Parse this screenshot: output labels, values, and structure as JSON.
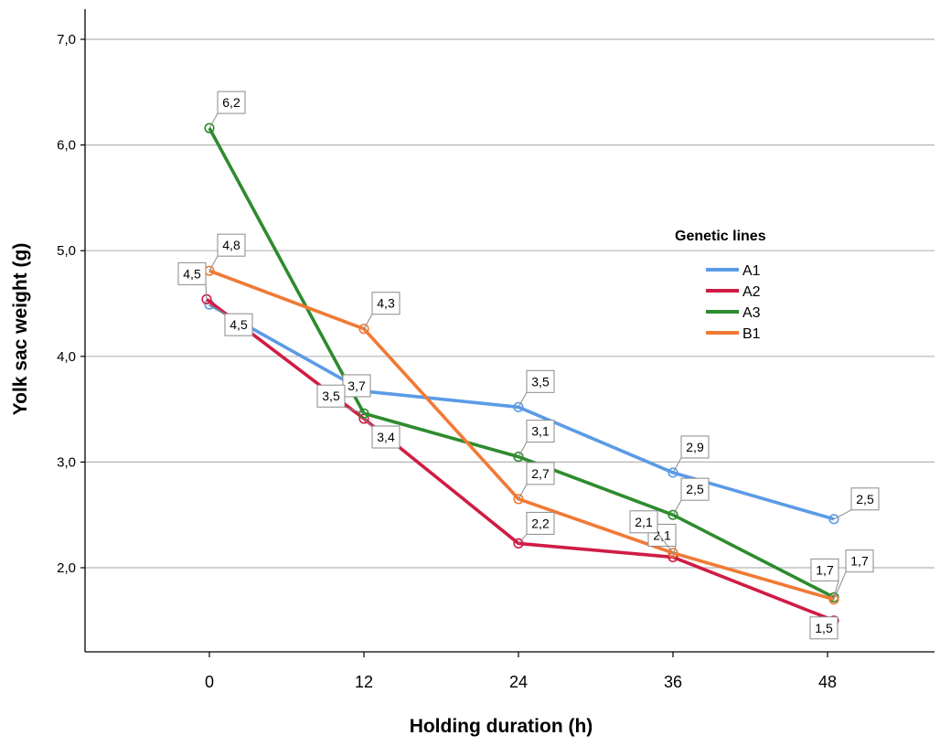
{
  "chart_data": {
    "type": "line",
    "xlabel": "Holding duration (h)",
    "ylabel": "Yolk sac weight (g)",
    "x": [
      0,
      12,
      24,
      36,
      48
    ],
    "xticks": [
      "0",
      "12",
      "24",
      "36",
      "48"
    ],
    "ylim": [
      1.2,
      7.3
    ],
    "yticks": [
      {
        "value": 2.0,
        "label": "2,0"
      },
      {
        "value": 3.0,
        "label": "3,0"
      },
      {
        "value": 4.0,
        "label": "4,0"
      },
      {
        "value": 5.0,
        "label": "5,0"
      },
      {
        "value": 6.0,
        "label": "6,0"
      },
      {
        "value": 7.0,
        "label": "7,0"
      }
    ],
    "grid": "horizontal",
    "legend": {
      "title": "Genetic lines",
      "position": "right"
    },
    "series": [
      {
        "name": "A1",
        "color": "#5b9be6",
        "values": [
          4.49,
          3.67,
          3.52,
          2.9,
          2.46
        ],
        "labels": [
          "4,5",
          "3,7",
          "3,5",
          "2,9",
          "2,5"
        ]
      },
      {
        "name": "A2",
        "color": "#d01c44",
        "values": [
          4.54,
          3.41,
          2.23,
          2.1,
          1.5
        ],
        "labels": [
          "4,5",
          "3,4",
          "2,2",
          "2,1",
          "1,5"
        ]
      },
      {
        "name": "A3",
        "color": "#2e8b2e",
        "values": [
          6.16,
          3.46,
          3.05,
          2.5,
          1.72
        ],
        "labels": [
          "6,2",
          "3,5",
          "3,1",
          "2,5",
          "1,7"
        ]
      },
      {
        "name": "B1",
        "color": "#f07a35",
        "values": [
          4.81,
          4.26,
          2.65,
          2.14,
          1.7
        ],
        "labels": [
          "4,8",
          "4,3",
          "2,7",
          "2,1",
          "1,7"
        ]
      }
    ]
  }
}
